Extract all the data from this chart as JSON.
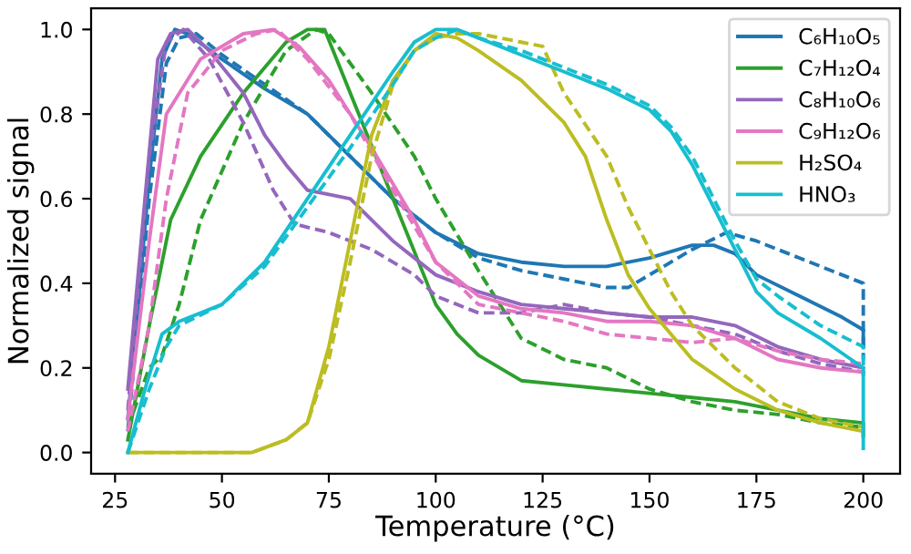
{
  "chart_data": {
    "type": "line",
    "xlabel": "Temperature (°C)",
    "ylabel": "Normalized signal",
    "xlim": [
      19.4,
      208.6
    ],
    "ylim": [
      -0.05,
      1.05
    ],
    "xticks": [
      25,
      50,
      75,
      100,
      125,
      150,
      175,
      200
    ],
    "yticks": [
      {
        "value": 0,
        "label": "0.0"
      },
      {
        "value": 0.2,
        "label": "0.2"
      },
      {
        "value": 0.4,
        "label": "0.4"
      },
      {
        "value": 0.6,
        "label": "0.6"
      },
      {
        "value": 0.8,
        "label": "0.8"
      },
      {
        "value": 1,
        "label": "1.0"
      }
    ],
    "grid": false,
    "legend": "top right",
    "marker": "none",
    "series": [
      {
        "name": "C₆H₁₀O₅",
        "color": "#1f77b4",
        "line_style": "solid",
        "x": [
          28,
          30,
          33,
          36,
          39,
          42,
          50,
          60,
          70,
          80,
          90,
          100,
          110,
          120,
          130,
          140,
          150,
          160,
          165,
          170,
          175,
          185,
          195,
          200,
          200
        ],
        "values": [
          0.08,
          0.3,
          0.65,
          0.93,
          1.0,
          0.99,
          0.93,
          0.86,
          0.8,
          0.7,
          0.6,
          0.52,
          0.47,
          0.45,
          0.44,
          0.44,
          0.46,
          0.49,
          0.49,
          0.47,
          0.42,
          0.37,
          0.32,
          0.29,
          0.25
        ]
      },
      {
        "color": "#1f77b4",
        "line_style": "dashed",
        "x": [
          28,
          33,
          37,
          40,
          44,
          50,
          60,
          70,
          80,
          90,
          100,
          110,
          120,
          130,
          140,
          145,
          150,
          160,
          168,
          175,
          185,
          195,
          200,
          200
        ],
        "values": [
          0.05,
          0.6,
          0.92,
          0.98,
          0.99,
          0.94,
          0.87,
          0.8,
          0.7,
          0.6,
          0.52,
          0.46,
          0.43,
          0.41,
          0.39,
          0.39,
          0.42,
          0.48,
          0.52,
          0.5,
          0.46,
          0.42,
          0.4,
          0.22
        ]
      },
      {
        "name": "C₇H₁₂O₄",
        "color": "#2ca02c",
        "line_style": "solid",
        "x": [
          28,
          33,
          38,
          45,
          55,
          65,
          70,
          74,
          80,
          90,
          100,
          105,
          110,
          120,
          130,
          140,
          150,
          160,
          170,
          180,
          190,
          200,
          200
        ],
        "values": [
          0.03,
          0.3,
          0.55,
          0.7,
          0.85,
          0.97,
          1.0,
          1.0,
          0.85,
          0.6,
          0.35,
          0.28,
          0.23,
          0.17,
          0.16,
          0.15,
          0.14,
          0.13,
          0.12,
          0.1,
          0.08,
          0.07,
          0.04
        ]
      },
      {
        "color": "#2ca02c",
        "line_style": "dashed",
        "x": [
          28,
          33,
          36,
          40,
          45,
          55,
          65,
          72,
          75,
          85,
          95,
          100,
          110,
          120,
          130,
          140,
          150,
          160,
          170,
          180,
          190,
          200
        ],
        "values": [
          0.06,
          0.2,
          0.23,
          0.35,
          0.55,
          0.78,
          0.95,
          1.0,
          0.99,
          0.85,
          0.7,
          0.6,
          0.43,
          0.27,
          0.22,
          0.2,
          0.15,
          0.12,
          0.1,
          0.09,
          0.07,
          0.06
        ]
      },
      {
        "name": "C₈H₁₀O₆",
        "color": "#9467bd",
        "line_style": "solid",
        "x": [
          28,
          32,
          35,
          38,
          42,
          47,
          55,
          60,
          65,
          70,
          75,
          80,
          90,
          100,
          110,
          120,
          130,
          140,
          150,
          160,
          170,
          180,
          190,
          200
        ],
        "values": [
          0.15,
          0.6,
          0.93,
          0.99,
          1.0,
          0.95,
          0.85,
          0.75,
          0.68,
          0.62,
          0.61,
          0.6,
          0.5,
          0.42,
          0.38,
          0.35,
          0.34,
          0.33,
          0.32,
          0.32,
          0.3,
          0.25,
          0.22,
          0.2
        ]
      },
      {
        "color": "#9467bd",
        "line_style": "dashed",
        "x": [
          28,
          33,
          37,
          41,
          47,
          55,
          62,
          67,
          75,
          85,
          95,
          100,
          110,
          120,
          130,
          140,
          150,
          160,
          170,
          180,
          190,
          200
        ],
        "values": [
          0.1,
          0.7,
          0.97,
          1.0,
          0.93,
          0.78,
          0.62,
          0.54,
          0.52,
          0.48,
          0.42,
          0.37,
          0.33,
          0.33,
          0.35,
          0.33,
          0.32,
          0.3,
          0.28,
          0.24,
          0.21,
          0.19
        ]
      },
      {
        "name": "C₉H₁₂O₆",
        "color": "#e377c2",
        "line_style": "solid",
        "x": [
          28,
          33,
          37,
          45,
          55,
          62,
          68,
          75,
          85,
          95,
          100,
          110,
          120,
          130,
          140,
          150,
          160,
          170,
          180,
          190,
          200
        ],
        "values": [
          0.08,
          0.5,
          0.8,
          0.93,
          0.99,
          1.0,
          0.96,
          0.88,
          0.72,
          0.55,
          0.45,
          0.37,
          0.34,
          0.33,
          0.31,
          0.31,
          0.3,
          0.27,
          0.22,
          0.2,
          0.19
        ]
      },
      {
        "color": "#e377c2",
        "line_style": "dashed",
        "x": [
          28,
          33,
          37,
          42,
          50,
          58,
          63,
          70,
          80,
          90,
          100,
          110,
          120,
          130,
          140,
          150,
          160,
          170,
          180,
          190,
          200
        ],
        "values": [
          0.05,
          0.3,
          0.6,
          0.85,
          0.95,
          0.99,
          1.0,
          0.93,
          0.8,
          0.62,
          0.45,
          0.35,
          0.33,
          0.31,
          0.28,
          0.27,
          0.26,
          0.27,
          0.24,
          0.22,
          0.21
        ]
      },
      {
        "name": "H₂SO₄",
        "color": "#bcbd22",
        "line_style": "solid",
        "x": [
          28,
          45,
          57,
          65,
          70,
          75,
          80,
          85,
          90,
          95,
          100,
          105,
          110,
          120,
          130,
          135,
          140,
          145,
          150,
          160,
          170,
          180,
          190,
          200,
          200
        ],
        "values": [
          0.0,
          0.0,
          0.0,
          0.03,
          0.07,
          0.25,
          0.5,
          0.75,
          0.88,
          0.95,
          0.99,
          0.98,
          0.95,
          0.88,
          0.78,
          0.7,
          0.55,
          0.42,
          0.34,
          0.22,
          0.15,
          0.1,
          0.07,
          0.05,
          0.04
        ]
      },
      {
        "color": "#bcbd22",
        "line_style": "dashed",
        "x": [
          28,
          57,
          65,
          70,
          75,
          80,
          85,
          90,
          95,
          100,
          105,
          110,
          120,
          125,
          130,
          140,
          145,
          150,
          155,
          160,
          170,
          180,
          190,
          200
        ],
        "values": [
          0.0,
          0.0,
          0.03,
          0.07,
          0.22,
          0.45,
          0.7,
          0.87,
          0.95,
          0.98,
          0.99,
          0.99,
          0.97,
          0.96,
          0.85,
          0.7,
          0.58,
          0.48,
          0.38,
          0.3,
          0.2,
          0.12,
          0.08,
          0.06
        ]
      },
      {
        "name": "HNO₃",
        "color": "#17becf",
        "line_style": "solid",
        "x": [
          28,
          32,
          36,
          40,
          50,
          60,
          70,
          80,
          90,
          95,
          100,
          105,
          110,
          120,
          130,
          140,
          150,
          155,
          160,
          165,
          170,
          175,
          180,
          190,
          200,
          200
        ],
        "values": [
          0.0,
          0.15,
          0.28,
          0.31,
          0.35,
          0.45,
          0.6,
          0.75,
          0.9,
          0.97,
          1.0,
          1.0,
          0.98,
          0.94,
          0.9,
          0.86,
          0.81,
          0.76,
          0.68,
          0.58,
          0.48,
          0.38,
          0.33,
          0.27,
          0.2,
          0.01
        ]
      },
      {
        "color": "#17becf",
        "line_style": "dashed",
        "x": [
          28,
          33,
          37,
          40,
          50,
          60,
          70,
          80,
          90,
          95,
          100,
          105,
          110,
          120,
          130,
          140,
          150,
          155,
          160,
          165,
          170,
          175,
          180,
          190,
          200,
          200
        ],
        "values": [
          0.0,
          0.15,
          0.25,
          0.3,
          0.35,
          0.44,
          0.58,
          0.72,
          0.87,
          0.95,
          0.98,
          1.0,
          0.98,
          0.95,
          0.91,
          0.87,
          0.82,
          0.77,
          0.7,
          0.6,
          0.5,
          0.41,
          0.37,
          0.3,
          0.25,
          0.18
        ]
      }
    ]
  }
}
